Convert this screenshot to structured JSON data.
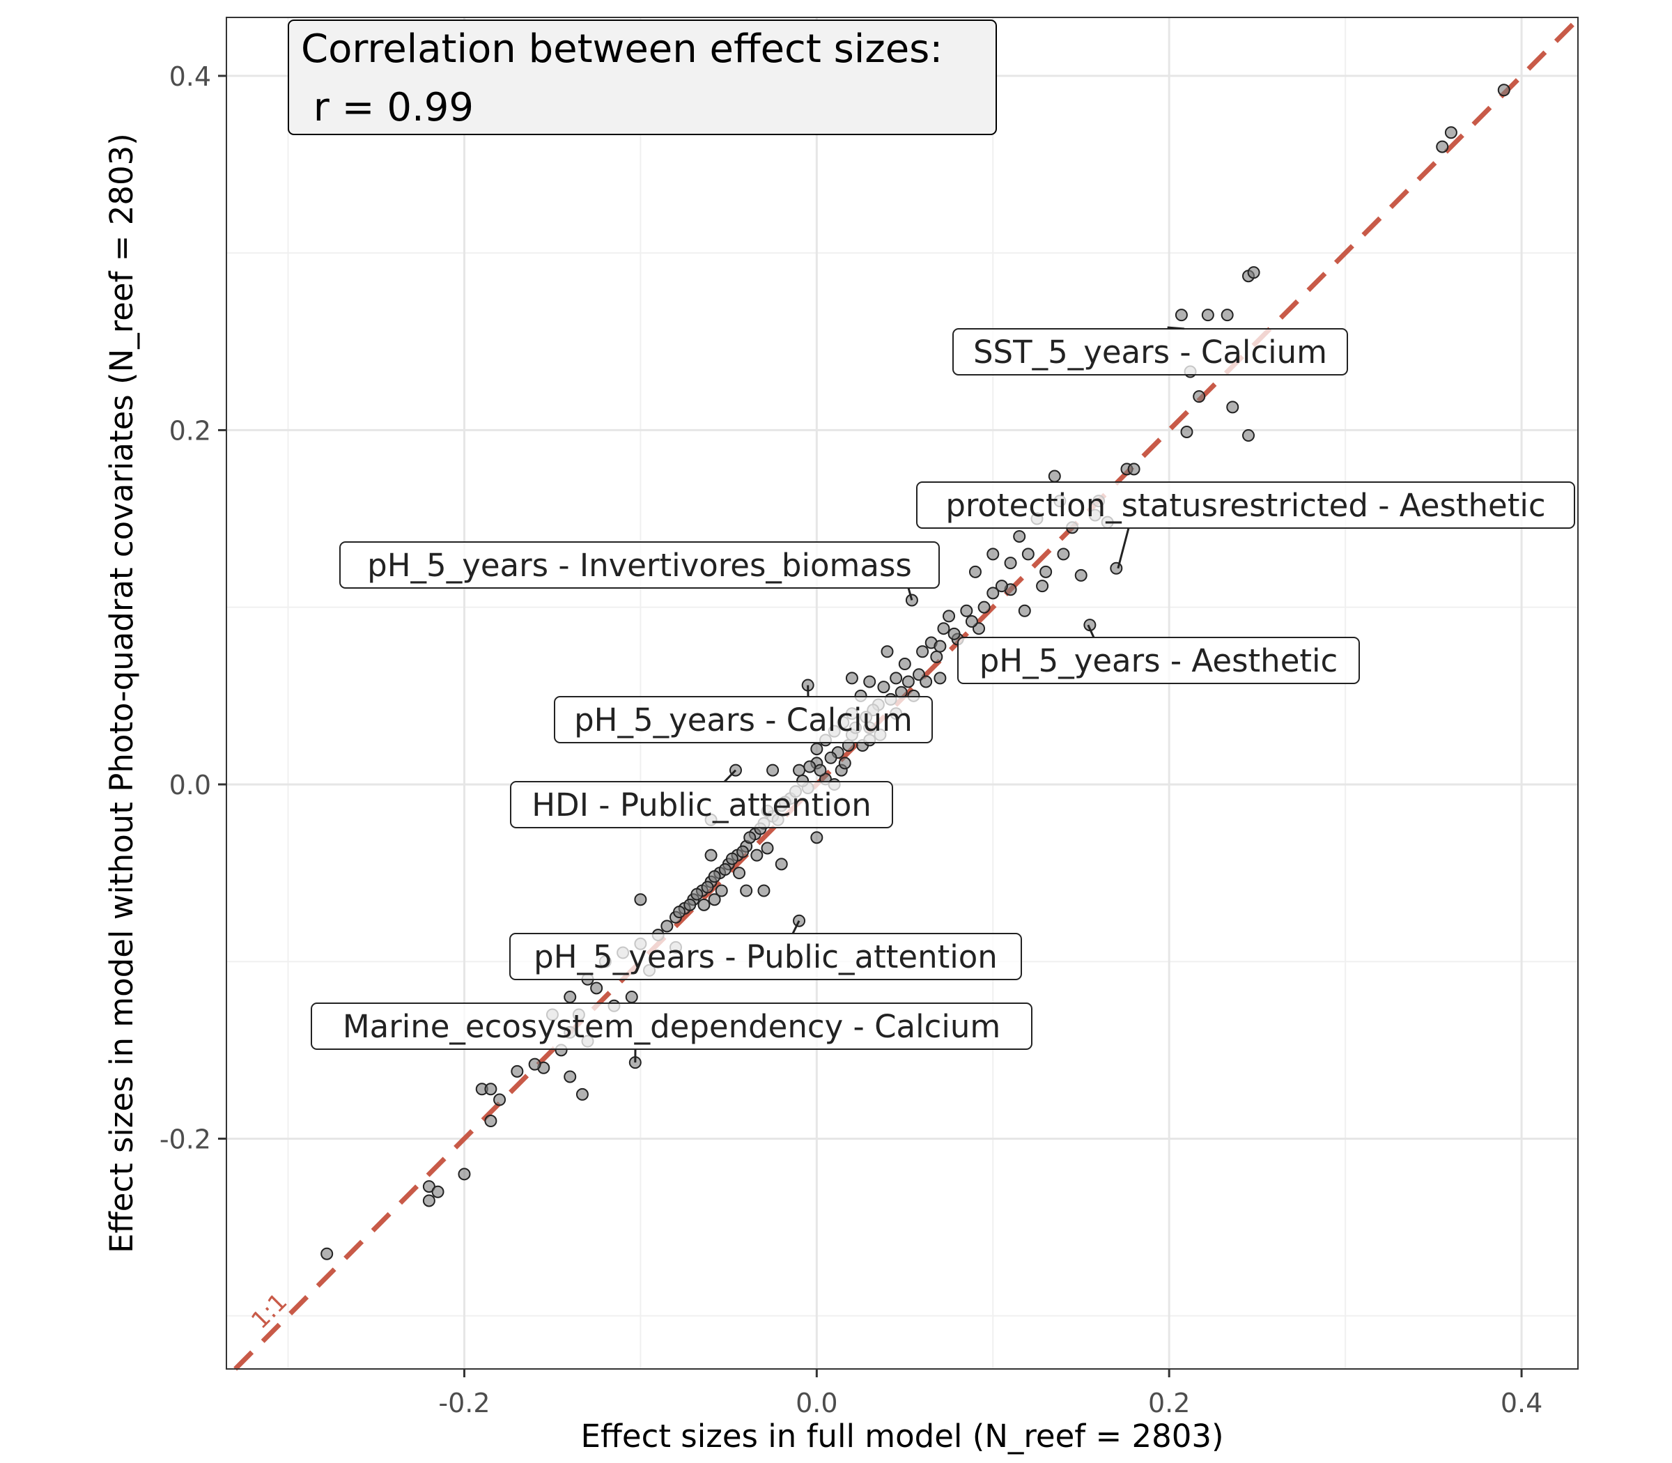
{
  "chart_data": {
    "type": "scatter",
    "xlabel": "Effect sizes in full model (N_reef = 2803)",
    "ylabel": "Effect sizes in model without Photo-quadrat covariates (N_reef = 2803)",
    "xlim": [
      -0.335,
      0.432
    ],
    "ylim": [
      -0.33,
      0.433
    ],
    "x_ticks": [
      -0.2,
      0.0,
      0.2,
      0.4
    ],
    "x_tick_labels": [
      "-0.2",
      "0.0",
      "0.2",
      "0.4"
    ],
    "y_ticks": [
      -0.2,
      0.0,
      0.2,
      0.4
    ],
    "y_tick_labels": [
      "-0.2",
      "0.0",
      "0.2",
      "0.4"
    ],
    "grid": true,
    "reference_line": {
      "slope": 1,
      "intercept": 0,
      "label": "1:1",
      "color": "#c85a48"
    },
    "correlation_box": {
      "line1": "Correlation between effect sizes:",
      "line2": " r = 0.99"
    },
    "point_color": "#7f7f7f",
    "point_edge": "#222222",
    "annotations": [
      {
        "text": "SST_5_years - Calcium",
        "x": 0.199,
        "y": 0.258
      },
      {
        "text": "protection_statusrestricted - Aesthetic",
        "x": 0.171,
        "y": 0.122
      },
      {
        "text": "pH_5_years - Invertivores_biomass",
        "x": 0.054,
        "y": 0.104
      },
      {
        "text": "pH_5_years - Aesthetic",
        "x": 0.154,
        "y": 0.09
      },
      {
        "text": "pH_5_years - Calcium",
        "x": -0.005,
        "y": 0.056
      },
      {
        "text": "HDI - Public_attention",
        "x": -0.046,
        "y": 0.008
      },
      {
        "text": "pH_5_years - Public_attention",
        "x": -0.01,
        "y": -0.077
      },
      {
        "text": "Marine_ecosystem_dependency - Calcium",
        "x": -0.103,
        "y": -0.157
      }
    ],
    "points": [
      [
        0.39,
        0.392
      ],
      [
        0.355,
        0.36
      ],
      [
        0.36,
        0.368
      ],
      [
        0.245,
        0.287
      ],
      [
        0.248,
        0.289
      ],
      [
        0.207,
        0.265
      ],
      [
        0.222,
        0.265
      ],
      [
        0.233,
        0.265
      ],
      [
        0.212,
        0.233
      ],
      [
        0.217,
        0.219
      ],
      [
        0.236,
        0.213
      ],
      [
        0.21,
        0.199
      ],
      [
        0.245,
        0.197
      ],
      [
        0.176,
        0.178
      ],
      [
        0.18,
        0.178
      ],
      [
        0.135,
        0.174
      ],
      [
        0.16,
        0.16
      ],
      [
        0.145,
        0.145
      ],
      [
        0.17,
        0.122
      ],
      [
        0.155,
        0.09
      ],
      [
        0.054,
        0.104
      ],
      [
        0.12,
        0.13
      ],
      [
        0.13,
        0.12
      ],
      [
        0.1,
        0.13
      ],
      [
        0.11,
        0.11
      ],
      [
        0.09,
        0.12
      ],
      [
        0.14,
        0.13
      ],
      [
        0.15,
        0.118
      ],
      [
        0.095,
        0.1
      ],
      [
        0.085,
        0.098
      ],
      [
        0.075,
        0.095
      ],
      [
        0.08,
        0.082
      ],
      [
        0.072,
        0.088
      ],
      [
        0.06,
        0.075
      ],
      [
        0.065,
        0.08
      ],
      [
        0.04,
        0.075
      ],
      [
        0.05,
        0.068
      ],
      [
        0.045,
        0.06
      ],
      [
        0.038,
        0.055
      ],
      [
        0.03,
        0.058
      ],
      [
        0.025,
        0.05
      ],
      [
        0.035,
        0.045
      ],
      [
        0.02,
        0.04
      ],
      [
        0.015,
        0.035
      ],
      [
        0.01,
        0.03
      ],
      [
        0.005,
        0.025
      ],
      [
        -0.005,
        0.056
      ],
      [
        0.02,
        0.028
      ],
      [
        0.03,
        0.032
      ],
      [
        0.012,
        0.018
      ],
      [
        0.0,
        0.012
      ],
      [
        -0.01,
        0.008
      ],
      [
        -0.046,
        0.008
      ],
      [
        -0.025,
        0.008
      ],
      [
        0.005,
        0.003
      ],
      [
        0.01,
        0.0
      ],
      [
        -0.005,
        -0.002
      ],
      [
        -0.015,
        -0.008
      ],
      [
        -0.02,
        -0.012
      ],
      [
        -0.025,
        -0.018
      ],
      [
        -0.03,
        -0.022
      ],
      [
        -0.035,
        -0.028
      ],
      [
        -0.04,
        -0.035
      ],
      [
        -0.045,
        -0.04
      ],
      [
        -0.05,
        -0.045
      ],
      [
        -0.055,
        -0.05
      ],
      [
        -0.06,
        -0.055
      ],
      [
        -0.065,
        -0.06
      ],
      [
        -0.07,
        -0.065
      ],
      [
        -0.075,
        -0.07
      ],
      [
        -0.08,
        -0.075
      ],
      [
        -0.085,
        -0.08
      ],
      [
        -0.09,
        -0.085
      ],
      [
        -0.01,
        -0.077
      ],
      [
        -0.1,
        -0.065
      ],
      [
        -0.04,
        -0.06
      ],
      [
        -0.02,
        -0.045
      ],
      [
        0.0,
        -0.03
      ],
      [
        -0.06,
        -0.04
      ],
      [
        -0.1,
        -0.09
      ],
      [
        -0.11,
        -0.095
      ],
      [
        -0.12,
        -0.1
      ],
      [
        -0.13,
        -0.11
      ],
      [
        -0.14,
        -0.12
      ],
      [
        -0.125,
        -0.115
      ],
      [
        -0.135,
        -0.13
      ],
      [
        -0.15,
        -0.13
      ],
      [
        -0.14,
        -0.14
      ],
      [
        -0.13,
        -0.145
      ],
      [
        -0.103,
        -0.157
      ],
      [
        -0.155,
        -0.16
      ],
      [
        -0.16,
        -0.158
      ],
      [
        -0.17,
        -0.162
      ],
      [
        -0.14,
        -0.165
      ],
      [
        -0.133,
        -0.175
      ],
      [
        -0.19,
        -0.172
      ],
      [
        -0.185,
        -0.172
      ],
      [
        -0.18,
        -0.178
      ],
      [
        -0.185,
        -0.19
      ],
      [
        -0.2,
        -0.22
      ],
      [
        -0.22,
        -0.227
      ],
      [
        -0.215,
        -0.23
      ],
      [
        -0.22,
        -0.235
      ],
      [
        -0.278,
        -0.265
      ],
      [
        0.128,
        0.112
      ],
      [
        0.118,
        0.098
      ],
      [
        0.105,
        0.112
      ],
      [
        0.092,
        0.088
      ],
      [
        0.068,
        0.072
      ],
      [
        0.058,
        0.062
      ],
      [
        0.048,
        0.052
      ],
      [
        0.042,
        0.048
      ],
      [
        0.032,
        0.042
      ],
      [
        0.028,
        0.038
      ],
      [
        0.022,
        0.032
      ],
      [
        0.018,
        0.022
      ],
      [
        0.008,
        0.015
      ],
      [
        0.002,
        0.008
      ],
      [
        -0.008,
        0.002
      ],
      [
        -0.012,
        -0.004
      ],
      [
        -0.018,
        -0.01
      ],
      [
        -0.028,
        -0.015
      ],
      [
        -0.032,
        -0.025
      ],
      [
        -0.038,
        -0.03
      ],
      [
        -0.042,
        -0.038
      ],
      [
        -0.048,
        -0.042
      ],
      [
        -0.052,
        -0.048
      ],
      [
        -0.058,
        -0.052
      ],
      [
        -0.062,
        -0.058
      ],
      [
        -0.068,
        -0.062
      ],
      [
        -0.072,
        -0.068
      ],
      [
        -0.078,
        -0.072
      ],
      [
        0.062,
        0.058
      ],
      [
        0.052,
        0.058
      ],
      [
        0.036,
        0.028
      ],
      [
        0.026,
        0.022
      ],
      [
        0.014,
        0.008
      ],
      [
        -0.004,
        0.01
      ],
      [
        -0.022,
        -0.02
      ],
      [
        -0.034,
        -0.04
      ],
      [
        -0.044,
        -0.05
      ],
      [
        -0.054,
        -0.06
      ],
      [
        -0.064,
        -0.068
      ],
      [
        0.11,
        0.125
      ],
      [
        0.138,
        0.16
      ],
      [
        0.125,
        0.15
      ],
      [
        0.115,
        0.14
      ],
      [
        0.1,
        0.108
      ],
      [
        0.088,
        0.092
      ],
      [
        0.078,
        0.085
      ],
      [
        0.07,
        0.078
      ],
      [
        0.055,
        0.05
      ],
      [
        0.045,
        0.04
      ],
      [
        0.03,
        0.025
      ],
      [
        0.016,
        0.012
      ],
      [
        -0.028,
        -0.036
      ],
      [
        -0.058,
        -0.065
      ],
      [
        -0.08,
        -0.092
      ],
      [
        -0.095,
        -0.105
      ],
      [
        -0.115,
        -0.125
      ],
      [
        -0.145,
        -0.15
      ],
      [
        -0.105,
        -0.12
      ],
      [
        0.165,
        0.148
      ],
      [
        0.158,
        0.152
      ],
      [
        0.07,
        0.06
      ],
      [
        0.02,
        0.06
      ],
      [
        0.0,
        0.02
      ],
      [
        -0.06,
        -0.02
      ],
      [
        -0.03,
        -0.06
      ]
    ]
  }
}
